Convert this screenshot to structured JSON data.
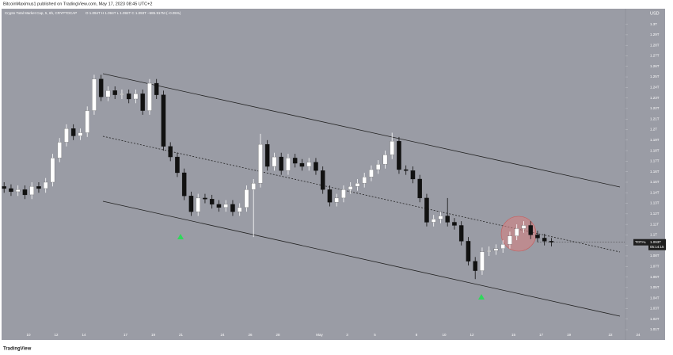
{
  "chart_data": {
    "type": "candlestick",
    "publisher": "BitcoinMaximus1 published on TradingView.com, May 17, 2023 08:45 UTC+2",
    "title": "Crypto Total Market Cap, 5, 6h, CRYPTOCAP",
    "ohlc_text": "O 1.094T  H 1.094T  L 1.092T  C 1.093T  −585.917M (−0.05%)",
    "currency": "USD",
    "symbol": "TOTAL",
    "last_price": {
      "value": 1.093,
      "label": "1.093T"
    },
    "countdown": "05:14:15",
    "brand": "TradingView",
    "up_color": "#ffffff",
    "down_color": "#111111",
    "categories": [
      null,
      null,
      null,
      null,
      "10",
      null,
      null,
      null,
      "12",
      null,
      null,
      null,
      "14",
      null,
      null,
      null,
      null,
      null,
      "17",
      null,
      null,
      null,
      "19",
      null,
      null,
      null,
      "21",
      null,
      null,
      null,
      null,
      null,
      "24",
      null,
      null,
      null,
      "26",
      null,
      null,
      null,
      "28",
      null,
      null,
      null,
      null,
      null,
      "May",
      null,
      null,
      null,
      "3",
      null,
      null,
      null,
      "5",
      null,
      null,
      null,
      null,
      null,
      "8",
      null,
      null,
      null,
      "10",
      null,
      null,
      null,
      "12",
      null,
      null,
      null,
      null,
      null,
      "15",
      null,
      null,
      null,
      "17",
      null,
      null,
      null,
      "19",
      null,
      null,
      null,
      null,
      null,
      "22",
      null,
      null,
      null,
      "24",
      null
    ],
    "open": [
      1.146,
      1.144,
      1.141,
      1.143,
      1.138,
      1.146,
      1.144,
      1.15,
      1.173,
      1.188,
      1.201,
      1.194,
      1.197,
      1.218,
      1.248,
      1.231,
      1.237,
      1.233,
      1.234,
      1.229,
      1.234,
      1.218,
      1.244,
      1.233,
      1.184,
      1.174,
      1.159,
      1.137,
      1.122,
      1.135,
      1.134,
      1.129,
      1.126,
      1.129,
      1.122,
      1.126,
      1.143,
      1.149,
      1.186,
      1.165,
      1.174,
      1.161,
      1.173,
      1.168,
      1.165,
      1.169,
      1.161,
      1.143,
      1.131,
      1.135,
      1.143,
      1.146,
      1.149,
      1.155,
      1.162,
      1.167,
      1.176,
      1.189,
      1.162,
      1.161,
      1.153,
      1.135,
      1.112,
      1.115,
      1.118,
      1.112,
      1.109,
      1.094,
      1.075,
      1.066,
      1.084,
      1.085,
      1.087,
      1.091,
      1.099,
      1.106,
      1.109,
      1.1,
      1.097,
      1.094,
      null,
      null,
      null,
      null,
      null,
      null,
      null,
      null,
      null,
      null,
      null,
      null,
      null,
      null
    ],
    "high": [
      1.15,
      1.148,
      1.147,
      1.147,
      1.15,
      1.15,
      1.154,
      1.177,
      1.192,
      1.205,
      1.205,
      1.201,
      1.222,
      1.252,
      1.252,
      1.241,
      1.241,
      1.238,
      1.238,
      1.238,
      1.238,
      1.248,
      1.248,
      1.237,
      1.188,
      1.178,
      1.163,
      1.141,
      1.139,
      1.139,
      1.138,
      1.133,
      1.133,
      1.133,
      1.13,
      1.147,
      1.153,
      1.196,
      1.19,
      1.178,
      1.178,
      1.177,
      1.177,
      1.172,
      1.173,
      1.173,
      1.165,
      1.147,
      1.139,
      1.147,
      1.15,
      1.153,
      1.159,
      1.166,
      1.171,
      1.18,
      1.197,
      1.193,
      1.166,
      1.165,
      1.157,
      1.139,
      1.119,
      1.122,
      1.135,
      1.116,
      1.113,
      1.098,
      1.079,
      1.088,
      1.089,
      1.091,
      1.095,
      1.103,
      1.11,
      1.113,
      1.113,
      1.104,
      1.101,
      1.097,
      null,
      null,
      null,
      null,
      null,
      null,
      null,
      null,
      null,
      null,
      null,
      null,
      null,
      null
    ],
    "low": [
      1.14,
      1.137,
      1.137,
      1.134,
      1.134,
      1.14,
      1.14,
      1.146,
      1.169,
      1.184,
      1.19,
      1.19,
      1.193,
      1.214,
      1.227,
      1.227,
      1.229,
      1.229,
      1.225,
      1.225,
      1.214,
      1.214,
      1.229,
      1.18,
      1.17,
      1.155,
      1.133,
      1.118,
      1.118,
      1.13,
      1.125,
      1.122,
      1.122,
      1.118,
      1.118,
      1.122,
      1.098,
      1.145,
      1.161,
      1.161,
      1.157,
      1.157,
      1.164,
      1.161,
      1.161,
      1.157,
      1.139,
      1.127,
      1.127,
      1.131,
      1.139,
      1.142,
      1.145,
      1.151,
      1.158,
      1.163,
      1.172,
      1.158,
      1.157,
      1.149,
      1.131,
      1.108,
      1.108,
      1.111,
      1.108,
      1.105,
      1.09,
      1.071,
      1.058,
      1.062,
      1.08,
      1.081,
      1.083,
      1.087,
      1.095,
      1.102,
      1.096,
      1.093,
      1.09,
      1.089,
      null,
      null,
      null,
      null,
      null,
      null,
      null,
      null,
      null,
      null,
      null,
      null,
      null,
      null
    ],
    "close": [
      1.144,
      1.141,
      1.143,
      1.138,
      1.146,
      1.144,
      1.15,
      1.173,
      1.188,
      1.201,
      1.194,
      1.197,
      1.218,
      1.248,
      1.231,
      1.237,
      1.233,
      1.234,
      1.229,
      1.234,
      1.218,
      1.244,
      1.233,
      1.184,
      1.174,
      1.159,
      1.137,
      1.122,
      1.135,
      1.134,
      1.129,
      1.126,
      1.129,
      1.122,
      1.126,
      1.143,
      1.149,
      1.186,
      1.165,
      1.174,
      1.161,
      1.173,
      1.168,
      1.165,
      1.169,
      1.161,
      1.143,
      1.131,
      1.135,
      1.143,
      1.146,
      1.149,
      1.155,
      1.162,
      1.167,
      1.176,
      1.189,
      1.162,
      1.161,
      1.153,
      1.135,
      1.112,
      1.115,
      1.118,
      1.112,
      1.109,
      1.094,
      1.075,
      1.066,
      1.084,
      1.085,
      1.087,
      1.091,
      1.099,
      1.106,
      1.109,
      1.1,
      1.097,
      1.094,
      1.093,
      null,
      null,
      null,
      null,
      null,
      null,
      null,
      null,
      null,
      null,
      null,
      null,
      null,
      null
    ],
    "ylim": [
      1.001,
      1.314
    ],
    "yticks": [
      {
        "value": 1.3,
        "label": "1.3T"
      },
      {
        "value": 1.29,
        "label": "1.29T"
      },
      {
        "value": 1.28,
        "label": "1.28T"
      },
      {
        "value": 1.27,
        "label": "1.27T"
      },
      {
        "value": 1.26,
        "label": "1.26T"
      },
      {
        "value": 1.25,
        "label": "1.25T"
      },
      {
        "value": 1.24,
        "label": "1.24T"
      },
      {
        "value": 1.23,
        "label": "1.23T"
      },
      {
        "value": 1.22,
        "label": "1.22T"
      },
      {
        "value": 1.21,
        "label": "1.21T"
      },
      {
        "value": 1.2,
        "label": "1.2T"
      },
      {
        "value": 1.19,
        "label": "1.19T"
      },
      {
        "value": 1.18,
        "label": "1.18T"
      },
      {
        "value": 1.17,
        "label": "1.17T"
      },
      {
        "value": 1.16,
        "label": "1.16T"
      },
      {
        "value": 1.15,
        "label": "1.15T"
      },
      {
        "value": 1.14,
        "label": "1.14T"
      },
      {
        "value": 1.13,
        "label": "1.13T"
      },
      {
        "value": 1.12,
        "label": "1.12T"
      },
      {
        "value": 1.11,
        "label": "1.11T"
      },
      {
        "value": 1.1,
        "label": "1.1T"
      },
      {
        "value": 1.09,
        "label": "1.09T"
      },
      {
        "value": 1.08,
        "label": "1.08T"
      },
      {
        "value": 1.07,
        "label": "1.07T"
      },
      {
        "value": 1.06,
        "label": "1.06T"
      },
      {
        "value": 1.05,
        "label": "1.05T"
      },
      {
        "value": 1.04,
        "label": "1.04T"
      },
      {
        "value": 1.03,
        "label": "1.03T"
      },
      {
        "value": 1.02,
        "label": "1.02T"
      },
      {
        "value": 1.01,
        "label": "1.01T"
      }
    ]
  }
}
